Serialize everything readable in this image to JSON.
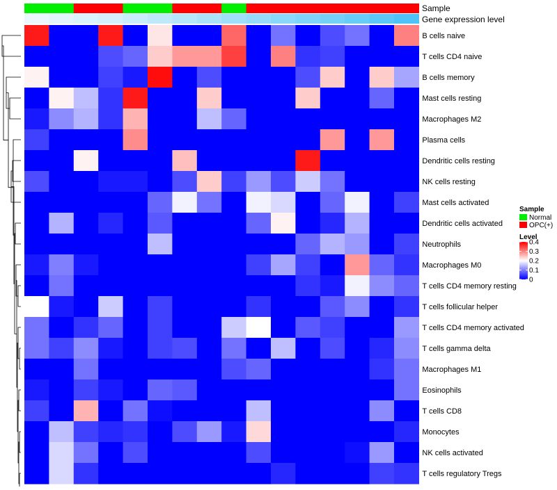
{
  "chart_data": {
    "type": "heatmap",
    "annotation_titles": [
      "Sample",
      "Gene expression level"
    ],
    "sample_groups": [
      "Normal",
      "Normal",
      "OPC(+)",
      "OPC(+)",
      "Normal",
      "Normal",
      "OPC(+)",
      "OPC(+)",
      "Normal",
      "OPC(+)",
      "OPC(+)",
      "OPC(+)",
      "OPC(+)",
      "OPC(+)",
      "OPC(+)",
      "OPC(+)"
    ],
    "gene_expression_levels": [
      0.02,
      0.05,
      0.08,
      0.11,
      0.15,
      0.19,
      0.23,
      0.27,
      0.31,
      0.35,
      0.4,
      0.44,
      0.48,
      0.53,
      0.58,
      0.63
    ],
    "rows": [
      "B cells naive",
      "T cells CD4 naive",
      "B cells memory",
      "Mast cells resting",
      "Macrophages M2",
      "Plasma cells",
      "Dendritic cells resting",
      "NK cells resting",
      "Mast cells activated",
      "Dendritic cells activated",
      "Neutrophils",
      "Macrophages M0",
      "T cells CD4 memory resting",
      "T cells follicular helper",
      "T cells CD4 memory activated",
      "T cells gamma delta",
      "Macrophages M1",
      "Eosinophils",
      "T cells CD8",
      "Monocytes",
      "NK cells activated",
      "T cells regulatory  Tregs"
    ],
    "values": [
      [
        0.38,
        0,
        0,
        0.38,
        0,
        0.22,
        0,
        0,
        0.32,
        0,
        0.09,
        0,
        0.06,
        0.09,
        0,
        0.3
      ],
      [
        0,
        0,
        0,
        0.06,
        0.08,
        0.24,
        0.28,
        0.28,
        0.35,
        0,
        0.3,
        0.04,
        0.05,
        0,
        0,
        0
      ],
      [
        0.21,
        0,
        0,
        0.05,
        0.02,
        0.39,
        0,
        0.06,
        0,
        0,
        0,
        0.06,
        0.24,
        0,
        0.24,
        0.13
      ],
      [
        0,
        0.21,
        0.15,
        0.04,
        0.38,
        0,
        0,
        0.24,
        0,
        0,
        0,
        0.24,
        0,
        0,
        0.08,
        0
      ],
      [
        0.02,
        0.11,
        0.14,
        0.04,
        0.26,
        0,
        0,
        0.15,
        0.08,
        0,
        0,
        0,
        0,
        0,
        0,
        0
      ],
      [
        0.05,
        0,
        0,
        0,
        0.29,
        0,
        0,
        0,
        0,
        0,
        0,
        0,
        0.28,
        0,
        0.28,
        0
      ],
      [
        0,
        0,
        0.21,
        0,
        0,
        0,
        0.25,
        0,
        0,
        0,
        0,
        0.38,
        0,
        0,
        0,
        0
      ],
      [
        0.06,
        0,
        0,
        0.02,
        0.02,
        0,
        0.06,
        0.24,
        0.05,
        0.12,
        0.06,
        0.16,
        0.09,
        0,
        0,
        0
      ],
      [
        0,
        0,
        0,
        0,
        0,
        0.08,
        0.19,
        0.09,
        0,
        0.19,
        0.17,
        0,
        0.08,
        0.19,
        0,
        0.05
      ],
      [
        0,
        0.14,
        0,
        0.03,
        0,
        0.07,
        0,
        0,
        0,
        0.08,
        0.21,
        0,
        0.03,
        0.14,
        0,
        0
      ],
      [
        0,
        0,
        0,
        0,
        0,
        0.15,
        0,
        0,
        0,
        0,
        0,
        0.08,
        0.14,
        0.12,
        0,
        0.05
      ],
      [
        0.02,
        0.1,
        0.02,
        0,
        0,
        0,
        0,
        0,
        0,
        0.05,
        0.13,
        0.05,
        0,
        0.28,
        0.08,
        0.04
      ],
      [
        0,
        0.09,
        0,
        0,
        0,
        0,
        0,
        0,
        0,
        0,
        0,
        0.04,
        0.02,
        0.19,
        0.11,
        0.08
      ],
      [
        0.2,
        0.02,
        0,
        0.16,
        0,
        0.05,
        0,
        0,
        0,
        0.04,
        0,
        0,
        0.07,
        0.11,
        0,
        0.04
      ],
      [
        0.09,
        0,
        0.04,
        0.08,
        0,
        0.05,
        0,
        0,
        0.16,
        0.2,
        0,
        0.07,
        0.05,
        0,
        0,
        0.12
      ],
      [
        0.09,
        0.05,
        0.11,
        0.02,
        0,
        0.05,
        0.06,
        0,
        0.09,
        0,
        0.15,
        0,
        0.06,
        0,
        0.03,
        0.11
      ],
      [
        0,
        0,
        0.09,
        0,
        0,
        0,
        0,
        0,
        0.06,
        0.08,
        0,
        0,
        0,
        0,
        0.04,
        0.09
      ],
      [
        0.02,
        0,
        0.05,
        0.02,
        0,
        0.08,
        0.07,
        0,
        0,
        0,
        0,
        0,
        0,
        0,
        0,
        0.09
      ],
      [
        0.05,
        0,
        0.26,
        0,
        0.09,
        0.01,
        0,
        0,
        0,
        0.15,
        0,
        0,
        0,
        0,
        0.11,
        0
      ],
      [
        0,
        0.15,
        0.05,
        0.03,
        0.04,
        0,
        0.06,
        0.12,
        0.02,
        0.23,
        0,
        0,
        0,
        0,
        0,
        0.03
      ],
      [
        0,
        0.17,
        0.09,
        0,
        0.06,
        0,
        0,
        0,
        0,
        0.06,
        0,
        0,
        0,
        0.01,
        0.12,
        0
      ],
      [
        0,
        0.17,
        0.04,
        0,
        0,
        0,
        0,
        0,
        0,
        0,
        0.03,
        0,
        0,
        0,
        0.05,
        0.04
      ]
    ],
    "color_scale": {
      "min": 0,
      "max": 0.4,
      "low": "#0000ff",
      "mid": "#ffffff",
      "high": "#ff0000",
      "mid_value": 0.2
    },
    "annotation_colors": {
      "Normal": "#00ee00",
      "OPC(+)": "#ff0000",
      "gene_low": "#eaf8fd",
      "gene_high": "#4fc3f7"
    },
    "legend": {
      "sample_title": "Sample",
      "sample_entries": [
        "Normal",
        "OPC(+)"
      ],
      "level_title": "Level",
      "level_ticks": [
        "0",
        "0.1",
        "0.2",
        "0.3",
        "0.4"
      ],
      "level_tick_values": [
        0,
        0.1,
        0.2,
        0.3,
        0.4
      ]
    },
    "row_dendrogram": "hierarchical clustering on rows",
    "column_dendrogram": "none"
  }
}
